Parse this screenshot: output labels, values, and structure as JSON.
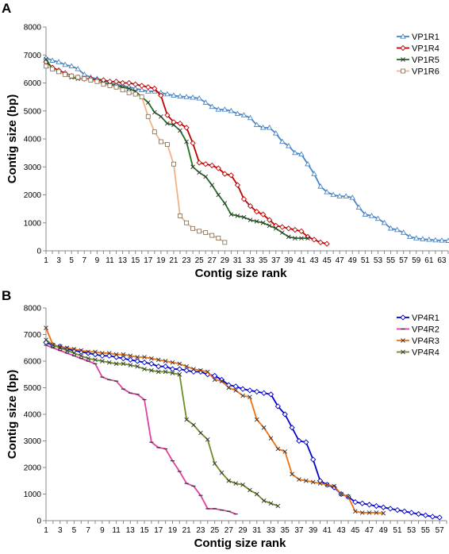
{
  "panels": [
    {
      "letter": "A",
      "chart_data": {
        "type": "line",
        "xlabel": "Contig size rank",
        "ylabel": "Contig size (bp)",
        "xlim": [
          1,
          64
        ],
        "ylim": [
          0,
          8000
        ],
        "y_ticks": [
          0,
          1000,
          2000,
          3000,
          4000,
          5000,
          6000,
          7000,
          8000
        ],
        "x_ticks": [
          1,
          3,
          5,
          7,
          9,
          11,
          13,
          15,
          17,
          19,
          21,
          23,
          25,
          27,
          29,
          31,
          33,
          35,
          37,
          39,
          41,
          43,
          45,
          47,
          49,
          51,
          53,
          55,
          57,
          59,
          61,
          63
        ],
        "grid": false,
        "legend_position": "top-right",
        "series": [
          {
            "name": "VP1R1",
            "color": "#4a86c5",
            "marker": "triangle",
            "values": [
              6900,
              6800,
              6750,
              6650,
              6600,
              6500,
              6300,
              6200,
              6150,
              6100,
              6000,
              5950,
              5900,
              5850,
              5800,
              5750,
              5700,
              5700,
              5650,
              5600,
              5550,
              5520,
              5500,
              5480,
              5450,
              5300,
              5150,
              5050,
              5050,
              5000,
              4900,
              4850,
              4750,
              4500,
              4400,
              4400,
              4200,
              3900,
              3750,
              3500,
              3450,
              3100,
              2750,
              2300,
              2100,
              2000,
              1950,
              1950,
              1900,
              1550,
              1300,
              1250,
              1150,
              1000,
              800,
              750,
              650,
              500,
              450,
              420,
              400,
              380,
              370,
              360
            ]
          },
          {
            "name": "VP1R4",
            "color": "#c00000",
            "marker": "diamond",
            "values": [
              6750,
              6550,
              6450,
              6350,
              6250,
              6200,
              6150,
              6150,
              6100,
              6100,
              6050,
              6050,
              6000,
              6000,
              5950,
              5900,
              5850,
              5800,
              5550,
              4850,
              4600,
              4550,
              4400,
              3850,
              3150,
              3100,
              3050,
              2950,
              2750,
              2700,
              2350,
              1850,
              1600,
              1400,
              1300,
              1100,
              900,
              850,
              800,
              750,
              700,
              500,
              400,
              300,
              250
            ]
          },
          {
            "name": "VP1R5",
            "color": "#207020",
            "marker": "x",
            "values": [
              6850,
              6500,
              6400,
              6300,
              6200,
              6150,
              6150,
              6100,
              6050,
              6000,
              5950,
              5900,
              5850,
              5800,
              5700,
              5500,
              5300,
              4950,
              4800,
              4550,
              4500,
              4300,
              3900,
              3000,
              2800,
              2650,
              2350,
              2000,
              1700,
              1300,
              1250,
              1200,
              1100,
              1050,
              1000,
              900,
              800,
              650,
              500,
              450,
              450,
              450
            ]
          },
          {
            "name": "VP1R6",
            "color": "#f4b183",
            "marker": "square",
            "values": [
              6600,
              6500,
              6400,
              6300,
              6250,
              6200,
              6150,
              6100,
              6050,
              5950,
              5900,
              5850,
              5750,
              5650,
              5600,
              5500,
              4800,
              4250,
              3900,
              3800,
              3100,
              1250,
              1000,
              800,
              700,
              650,
              550,
              450,
              300
            ]
          }
        ]
      }
    },
    {
      "letter": "B",
      "chart_data": {
        "type": "line",
        "xlabel": "Contig size rank",
        "ylabel": "Contig size (bp)",
        "xlim": [
          1,
          58
        ],
        "ylim": [
          0,
          8000
        ],
        "y_ticks": [
          0,
          1000,
          2000,
          3000,
          4000,
          5000,
          6000,
          7000,
          8000
        ],
        "x_ticks": [
          1,
          3,
          5,
          7,
          9,
          11,
          13,
          15,
          17,
          19,
          21,
          23,
          25,
          27,
          29,
          31,
          33,
          35,
          37,
          39,
          41,
          43,
          45,
          47,
          49,
          51,
          53,
          55,
          57
        ],
        "grid": false,
        "legend_position": "top-right",
        "series": [
          {
            "name": "VP4R1",
            "color": "#0000cc",
            "marker": "diamond",
            "values": [
              6700,
              6600,
              6550,
              6450,
              6400,
              6350,
              6300,
              6250,
              6200,
              6200,
              6150,
              6100,
              6050,
              6000,
              5950,
              5900,
              5800,
              5800,
              5700,
              5700,
              5650,
              5600,
              5600,
              5500,
              5450,
              5300,
              5100,
              5050,
              4950,
              4900,
              4850,
              4800,
              4750,
              4300,
              4000,
              3500,
              3000,
              2950,
              2300,
              1500,
              1350,
              1250,
              1000,
              900,
              700,
              650,
              600,
              550,
              500,
              450,
              400,
              350,
              300,
              250,
              200,
              150,
              120
            ]
          },
          {
            "name": "VP4R2",
            "color": "#e040a0",
            "marker": "dash",
            "values": [
              6600,
              6500,
              6400,
              6300,
              6200,
              6100,
              6000,
              5900,
              5400,
              5300,
              5250,
              4950,
              4800,
              4750,
              4550,
              2950,
              2750,
              2700,
              2250,
              1850,
              1400,
              1300,
              950,
              450,
              450,
              400,
              350,
              250
            ]
          },
          {
            "name": "VP4R3",
            "color": "#f07010",
            "marker": "x",
            "values": [
              7250,
              6600,
              6550,
              6500,
              6450,
              6400,
              6350,
              6350,
              6300,
              6300,
              6250,
              6250,
              6200,
              6150,
              6150,
              6100,
              6050,
              6000,
              5950,
              5900,
              5800,
              5700,
              5650,
              5600,
              5300,
              5250,
              5000,
              4900,
              4700,
              4650,
              3800,
              3500,
              3100,
              2700,
              2600,
              1750,
              1550,
              1500,
              1450,
              1400,
              1350,
              1300,
              1000,
              900,
              350,
              300,
              300,
              300,
              280
            ]
          },
          {
            "name": "VP4R4",
            "color": "#6b8e23",
            "marker": "x",
            "values": [
              6800,
              6600,
              6500,
              6400,
              6300,
              6200,
              6100,
              6050,
              6000,
              5950,
              5900,
              5900,
              5850,
              5800,
              5700,
              5650,
              5600,
              5600,
              5550,
              5500,
              3800,
              3600,
              3300,
              3050,
              2150,
              1800,
              1500,
              1400,
              1350,
              1150,
              1000,
              750,
              650,
              550
            ]
          }
        ]
      }
    }
  ]
}
